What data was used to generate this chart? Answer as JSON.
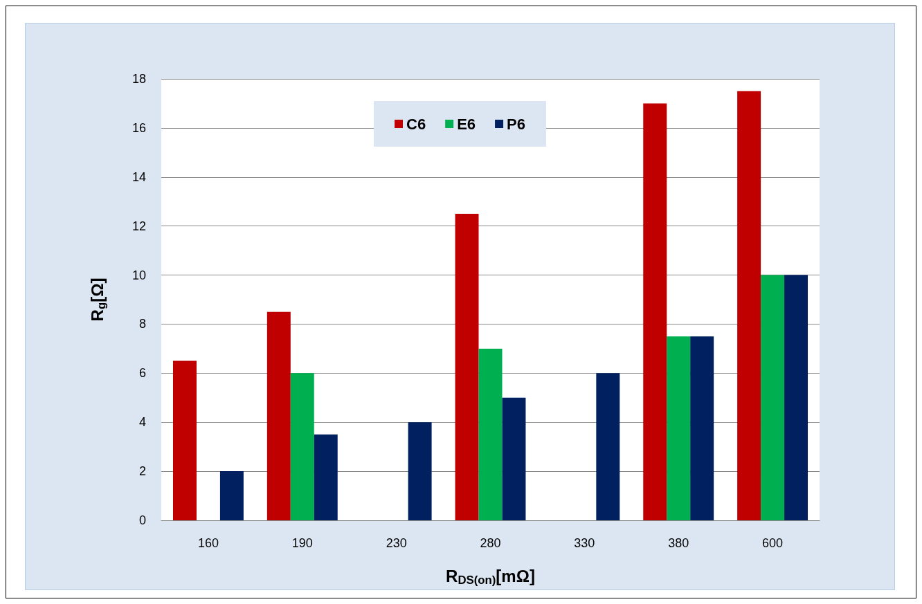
{
  "chart_data": {
    "type": "bar",
    "xlabel": "R$_{DS(on)}$[mΩ]",
    "ylabel": "R$_{g}$[Ω]",
    "categories": [
      "160",
      "190",
      "230",
      "280",
      "330",
      "380",
      "600"
    ],
    "series": [
      {
        "name": "C6",
        "color": "#c00000",
        "values": [
          6.5,
          8.5,
          null,
          12.5,
          null,
          17,
          17.5
        ]
      },
      {
        "name": "E6",
        "color": "#00b050",
        "values": [
          null,
          6,
          null,
          7,
          null,
          7.5,
          10
        ]
      },
      {
        "name": "P6",
        "color": "#002060",
        "values": [
          2,
          3.5,
          4,
          5,
          6,
          7.5,
          10
        ]
      }
    ],
    "ylim": [
      0,
      18
    ],
    "yticks": [
      0,
      2,
      4,
      6,
      8,
      10,
      12,
      14,
      16,
      18
    ],
    "grid": "y",
    "legend": "top"
  }
}
